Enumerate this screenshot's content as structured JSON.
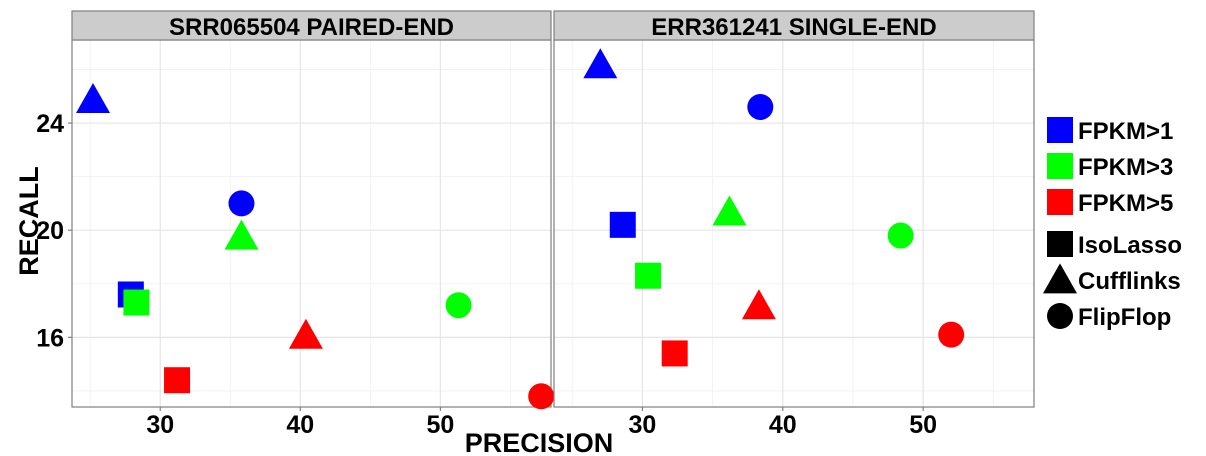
{
  "chart_data": {
    "type": "scatter",
    "xlabel": "PRECISION",
    "ylabel": "RECALL",
    "xlim": [
      23.7,
      57.9
    ],
    "ylim": [
      13.4,
      27.1
    ],
    "x_ticks": [
      30,
      40,
      50
    ],
    "y_ticks": [
      16,
      20,
      24
    ],
    "grid": true,
    "legend_position": "right",
    "legend_color": [
      {
        "label": "FPKM>1",
        "color": "#0000FF"
      },
      {
        "label": "FPKM>3",
        "color": "#00FF00"
      },
      {
        "label": "FPKM>5",
        "color": "#FF0000"
      }
    ],
    "legend_shape": [
      {
        "label": "IsoLasso",
        "shape": "square"
      },
      {
        "label": "Cufflinks",
        "shape": "triangle"
      },
      {
        "label": "FlipFlop",
        "shape": "circle"
      }
    ],
    "panels": [
      {
        "title": "SRR065504 PAIRED-END",
        "points": [
          {
            "method": "Cufflinks",
            "threshold": "FPKM>1",
            "x": 25.2,
            "y": 24.8
          },
          {
            "method": "FlipFlop",
            "threshold": "FPKM>1",
            "x": 35.8,
            "y": 21.0
          },
          {
            "method": "IsoLasso",
            "threshold": "FPKM>1",
            "x": 27.9,
            "y": 17.6
          },
          {
            "method": "Cufflinks",
            "threshold": "FPKM>3",
            "x": 35.8,
            "y": 19.7
          },
          {
            "method": "IsoLasso",
            "threshold": "FPKM>3",
            "x": 28.3,
            "y": 17.3
          },
          {
            "method": "FlipFlop",
            "threshold": "FPKM>3",
            "x": 51.3,
            "y": 17.2
          },
          {
            "method": "Cufflinks",
            "threshold": "FPKM>5",
            "x": 40.4,
            "y": 16.0
          },
          {
            "method": "IsoLasso",
            "threshold": "FPKM>5",
            "x": 31.2,
            "y": 14.4
          },
          {
            "method": "FlipFlop",
            "threshold": "FPKM>5",
            "x": 57.2,
            "y": 13.8
          }
        ]
      },
      {
        "title": "ERR361241 SINGLE-END",
        "points": [
          {
            "method": "Cufflinks",
            "threshold": "FPKM>1",
            "x": 27.0,
            "y": 26.1
          },
          {
            "method": "FlipFlop",
            "threshold": "FPKM>1",
            "x": 38.4,
            "y": 24.6
          },
          {
            "method": "IsoLasso",
            "threshold": "FPKM>1",
            "x": 28.6,
            "y": 20.2
          },
          {
            "method": "Cufflinks",
            "threshold": "FPKM>3",
            "x": 36.2,
            "y": 20.6
          },
          {
            "method": "FlipFlop",
            "threshold": "FPKM>3",
            "x": 48.4,
            "y": 19.8
          },
          {
            "method": "IsoLasso",
            "threshold": "FPKM>3",
            "x": 30.4,
            "y": 18.3
          },
          {
            "method": "Cufflinks",
            "threshold": "FPKM>5",
            "x": 38.3,
            "y": 17.1
          },
          {
            "method": "FlipFlop",
            "threshold": "FPKM>5",
            "x": 52.0,
            "y": 16.1
          },
          {
            "method": "IsoLasso",
            "threshold": "FPKM>5",
            "x": 32.3,
            "y": 15.4
          }
        ]
      }
    ]
  }
}
